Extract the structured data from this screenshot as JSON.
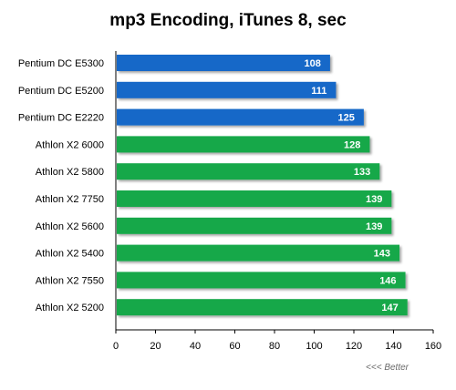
{
  "chart_data": {
    "type": "bar",
    "orientation": "horizontal",
    "title": "mp3 Encoding,  iTunes 8, sec",
    "categories": [
      "Pentium DC E5300",
      "Pentium DC E5200",
      "Pentium DC E2220",
      "Athlon X2 6000",
      "Athlon X2 5800",
      "Athlon X2 7750",
      "Athlon X2 5600",
      "Athlon X2 5400",
      "Athlon X2 7550",
      "Athlon X2 5200"
    ],
    "values": [
      108,
      111,
      125,
      128,
      133,
      139,
      139,
      143,
      146,
      147
    ],
    "bar_colors": [
      "#1468c8",
      "#1468c8",
      "#1468c8",
      "#12a84a",
      "#12a84a",
      "#12a84a",
      "#12a84a",
      "#12a84a",
      "#12a84a",
      "#12a84a"
    ],
    "xlim": [
      0,
      160
    ],
    "xticks": [
      0,
      20,
      40,
      60,
      80,
      100,
      120,
      140,
      160
    ],
    "grid": false,
    "note": "<<< Better"
  }
}
